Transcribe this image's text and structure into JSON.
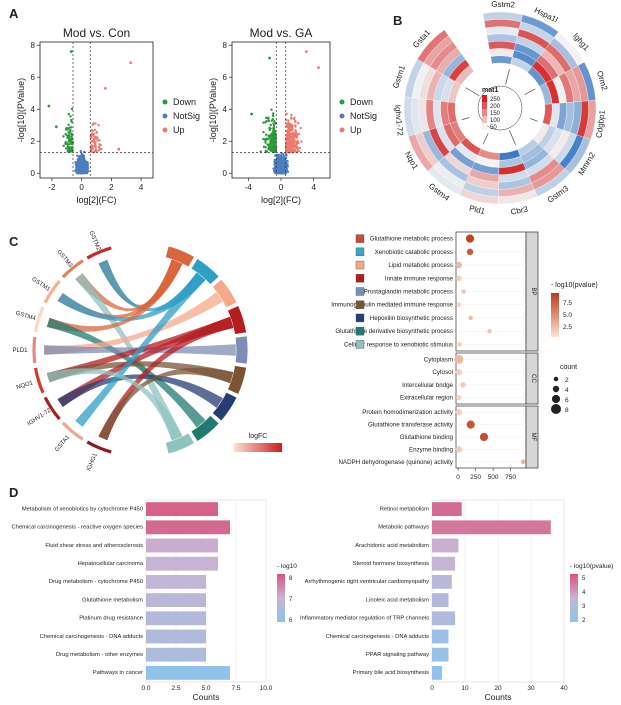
{
  "panels": {
    "A": {
      "label": "A"
    },
    "B": {
      "label": "B"
    },
    "C": {
      "label": "C"
    },
    "D": {
      "label": "D"
    }
  },
  "chart_data": [
    {
      "id": "volcano_mod_con",
      "type": "scatter",
      "title": "Mod vs. Con",
      "xlabel": "log[2](FC)",
      "ylabel": "-log[10](PValue)",
      "xlim": [
        -2.8,
        4.8
      ],
      "ylim": [
        -0.3,
        8.2
      ],
      "xticks": [
        -2,
        0,
        2,
        4
      ],
      "yticks": [
        0,
        2,
        4,
        6,
        8
      ],
      "thresholds": {
        "x": [
          -0.58,
          0.58
        ],
        "y": 1.3
      },
      "legend": [
        "Down",
        "NotSig",
        "Up"
      ],
      "colors": {
        "Down": "#2a9a3a",
        "NotSig": "#4a7fc1",
        "Up": "#ec7a6e"
      },
      "highlight_points": [
        {
          "group": "Up",
          "x": 3.3,
          "y": 6.9
        },
        {
          "group": "Up",
          "x": 2.5,
          "y": 1.5
        },
        {
          "group": "Down",
          "x": -2.2,
          "y": 4.2
        },
        {
          "group": "Down",
          "x": -1.7,
          "y": 2.9
        },
        {
          "group": "Down",
          "x": -0.7,
          "y": 7.6
        },
        {
          "group": "Up",
          "x": 1.6,
          "y": 5.3
        }
      ]
    },
    {
      "id": "volcano_mod_ga",
      "type": "scatter",
      "title": "Mod vs. GA",
      "xlabel": "log[2](FC)",
      "ylabel": "-log[10](PValue)",
      "xlim": [
        -6,
        6
      ],
      "ylim": [
        -0.3,
        8.2
      ],
      "xticks": [
        -4,
        0,
        4
      ],
      "yticks": [
        0,
        2,
        4,
        6,
        8
      ],
      "thresholds": {
        "x": [
          -0.58,
          0.58
        ],
        "y": 1.3
      },
      "legend": [
        "Down",
        "NotSig",
        "Up"
      ],
      "colors": {
        "Down": "#2a9a3a",
        "NotSig": "#4a7fc1",
        "Up": "#ec7a6e"
      },
      "highlight_points": [
        {
          "group": "Up",
          "x": 4.6,
          "y": 6.6
        },
        {
          "group": "Up",
          "x": 3.1,
          "y": 7.6
        },
        {
          "group": "Down",
          "x": -3.6,
          "y": 3.7
        },
        {
          "group": "Down",
          "x": -1.4,
          "y": 7.2
        }
      ]
    },
    {
      "id": "circular_heatmap",
      "type": "heatmap",
      "genes": [
        "Gstm2",
        "Hspa1l",
        "Ighg1",
        "Orm2",
        "Cdgbp1",
        "Mmrn2",
        "Gstm3",
        "Cbr3",
        "Pld1",
        "Gstm4",
        "Nqo1",
        "Ighv1-72",
        "Gstm1",
        "Gsta1"
      ],
      "rings": 7,
      "legend_title": "mat1",
      "legend_ticks": [
        250,
        200,
        150,
        100,
        50
      ],
      "colors": {
        "low": "#3a78c2",
        "mid": "#f4f4f4",
        "high": "#d42020"
      }
    },
    {
      "id": "chord",
      "type": "chord",
      "genes": [
        "GSTM2",
        "GSTM3",
        "GSTM1",
        "GSTM4",
        "PLD1",
        "NQO1",
        "IGHV1-72",
        "GSTA1",
        "IGHG1"
      ],
      "legend_title": "logFC"
    },
    {
      "id": "go_dotplot",
      "type": "scatter",
      "terms": [
        {
          "term": "Glutathione metabolic process",
          "cat": "BP",
          "x": 170,
          "count": 6,
          "p": 8.2
        },
        {
          "term": "Xenobiotic catabolic process",
          "cat": "BP",
          "x": 170,
          "count": 4,
          "p": 7.4
        },
        {
          "term": "Lipid metabolic process",
          "cat": "BP",
          "x": 10,
          "count": 4,
          "p": 4.0
        },
        {
          "term": "Innate immune response",
          "cat": "BP",
          "x": 10,
          "count": 3,
          "p": 3.2
        },
        {
          "term": "Prostaglandin metabolic process",
          "cat": "BP",
          "x": 80,
          "count": 2,
          "p": 3.6
        },
        {
          "term": "Immunoglobulin mediated immune response",
          "cat": "BP",
          "x": 10,
          "count": 2,
          "p": 3.0
        },
        {
          "term": "Hepoxilin biosynthetic process",
          "cat": "BP",
          "x": 180,
          "count": 2,
          "p": 3.8
        },
        {
          "term": "Glutathione derivative biosynthetic process",
          "cat": "BP",
          "x": 450,
          "count": 2,
          "p": 3.6
        },
        {
          "term": "Cellular response to xenobiotic stimulus",
          "cat": "BP",
          "x": 20,
          "count": 2,
          "p": 3.3
        },
        {
          "term": "Cytoplasm",
          "cat": "CC",
          "x": 10,
          "count": 7,
          "p": 4.0
        },
        {
          "term": "Cytosol",
          "cat": "CC",
          "x": 10,
          "count": 4,
          "p": 3.2
        },
        {
          "term": "Intercellular bridge",
          "cat": "CC",
          "x": 70,
          "count": 3,
          "p": 3.4
        },
        {
          "term": "Extracellular region",
          "cat": "CC",
          "x": 10,
          "count": 3,
          "p": 3.0
        },
        {
          "term": "Protein homodimerization activity",
          "cat": "MF",
          "x": 10,
          "count": 4,
          "p": 3.2
        },
        {
          "term": "Glutathione transferase activity",
          "cat": "MF",
          "x": 180,
          "count": 6,
          "p": 7.5
        },
        {
          "term": "Glutathione binding",
          "cat": "MF",
          "x": 370,
          "count": 6,
          "p": 7.8
        },
        {
          "term": "Enzyme binding",
          "cat": "MF",
          "x": 10,
          "count": 4,
          "p": 3.3
        },
        {
          "term": "NADPH dehydrogenase (quinone) activity",
          "cat": "MF",
          "x": 930,
          "count": 2,
          "p": 4.2
        }
      ],
      "xticks": [
        0,
        250,
        500,
        750
      ],
      "xlim": [
        -30,
        970
      ],
      "legend_title": "- log10(pvalue)",
      "color_ticks": [
        7.5,
        5.0,
        2.5
      ],
      "size_title": "count",
      "size_ticks": [
        2,
        4,
        6,
        8
      ],
      "categories": [
        "BP",
        "CC",
        "MF"
      ],
      "swatches": [
        "#d04a38",
        "#3aa3c7",
        "#f6a884",
        "#b81c24",
        "#7e90b6",
        "#7a5535",
        "#283e74",
        "#1f7a70",
        "#8ec2c0"
      ]
    },
    {
      "id": "kegg_bar_left",
      "type": "bar",
      "categories": [
        "Metabolism of xenobiotics by cytochrome P450",
        "Chemical carcinogenesis - reactive oxygen species",
        "Fluid shear stress and atherosclerosis",
        "Hepatocellular carcinoma",
        "Drug metabolism - cytochrome P450",
        "Glutathione metabolism",
        "Platinum drug resistance",
        "Chemical carcinogenesis - DNA adducts",
        "Drug metabolism - other enzymes",
        "Pathways in cancer"
      ],
      "values": [
        6,
        7,
        6,
        6,
        5,
        5,
        5,
        5,
        5,
        7
      ],
      "pvalue": [
        8.4,
        8.3,
        7.3,
        7.2,
        7.1,
        6.9,
        6.7,
        6.6,
        6.5,
        5.8
      ],
      "xlabel": "Counts",
      "xlim": [
        0,
        10
      ],
      "xticks": [
        "0.0",
        "2.5",
        "5.0",
        "7.5",
        "10.0"
      ],
      "legend_title": "- log10",
      "legend_ticks": [
        8,
        7,
        6
      ],
      "crange": [
        5.8,
        8.6
      ]
    },
    {
      "id": "kegg_bar_right",
      "type": "bar",
      "categories": [
        "Retinol metabolism",
        "Metabolic pathways",
        "Arachidonic acid metabolism",
        "Steroid hormone biosynthesis",
        "Arrhythmogenic right ventricular cardiomyopathy",
        "Linoleic acid metabolism",
        "Inflammatory mediator regulation of TRP channels",
        "Chemical carcinogenesis - DNA adducts",
        "PPAR signaling pathway",
        "Primary bile acid biosynthesis"
      ],
      "values": [
        9,
        36,
        8,
        7,
        6,
        5,
        7,
        5,
        5,
        3
      ],
      "pvalue": [
        4.8,
        4.6,
        3.6,
        3.4,
        3.0,
        2.9,
        2.8,
        2.2,
        2.1,
        1.9
      ],
      "xlabel": "Counts",
      "xlim": [
        0,
        40
      ],
      "xticks": [
        "0",
        "10",
        "20",
        "30",
        "40"
      ],
      "legend_title": "- log10(pvalue)",
      "legend_ticks": [
        5,
        4,
        3,
        2
      ],
      "crange": [
        1.8,
        5.2
      ]
    }
  ]
}
